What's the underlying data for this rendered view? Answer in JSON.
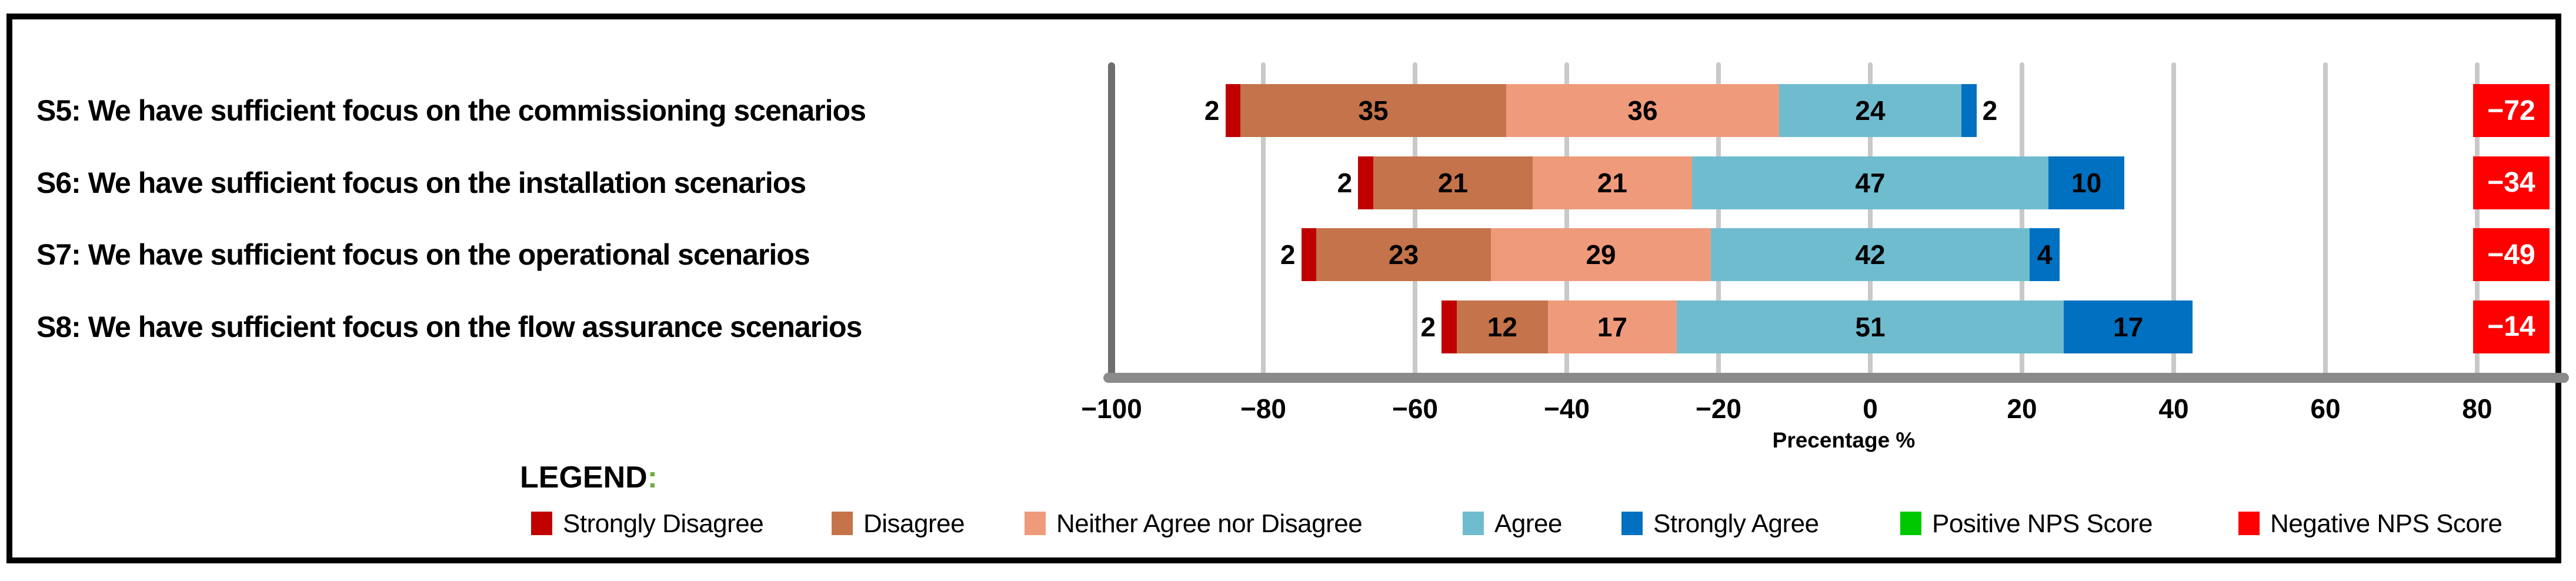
{
  "chart_data": {
    "type": "bar",
    "subtype": "diverging-stacked-likert",
    "orientation": "horizontal",
    "categories": [
      "S5: We have sufficient focus on the commissioning scenarios",
      "S6: We have sufficient focus on the installation scenarios",
      "S7: We have sufficient focus on the operational scenarios",
      "S8: We have sufficient focus on the flow assurance scenarios"
    ],
    "series": [
      {
        "name": "Strongly Disagree",
        "color": "#c00000",
        "values": [
          2,
          2,
          2,
          2
        ]
      },
      {
        "name": "Disagree",
        "color": "#c5734a",
        "values": [
          35,
          21,
          23,
          12
        ]
      },
      {
        "name": "Neither Agree nor Disagree",
        "color": "#f09a7c",
        "values": [
          36,
          21,
          29,
          17
        ]
      },
      {
        "name": "Agree",
        "color": "#6fbccf",
        "values": [
          24,
          47,
          42,
          51
        ]
      },
      {
        "name": "Strongly Agree",
        "color": "#0070c0",
        "values": [
          2,
          10,
          4,
          17
        ]
      }
    ],
    "nps_scores": {
      "name": "Negative NPS Score",
      "color": "#ff0000",
      "values": [
        -72,
        -34,
        -49,
        -14
      ],
      "display": [
        "−72",
        "−34",
        "−49",
        "−14"
      ]
    },
    "xlabel": "Precentage %",
    "x_ticks": [
      -100,
      -80,
      -60,
      -40,
      -20,
      0,
      20,
      40,
      60,
      80
    ],
    "x_tick_labels": [
      "−100",
      "−80",
      "−60",
      "−40",
      "−20",
      "0",
      "20",
      "40",
      "60",
      "80"
    ],
    "xlim": [
      -100,
      91
    ],
    "grid": true,
    "alignment": "agree-segment-centered-on-zero",
    "legend_position": "bottom"
  },
  "legend": {
    "title": "LEGEND",
    "colon": ":",
    "items": [
      {
        "label": "Strongly Disagree",
        "color": "#c00000"
      },
      {
        "label": "Disagree",
        "color": "#c5734a"
      },
      {
        "label": "Neither Agree nor Disagree",
        "color": "#f09a7c"
      },
      {
        "label": "Agree",
        "color": "#6fbccf"
      },
      {
        "label": "Strongly Agree",
        "color": "#0070c0"
      },
      {
        "label": "Positive NPS Score",
        "color": "#00c800"
      },
      {
        "label": "Negative NPS Score",
        "color": "#ff0000"
      }
    ]
  }
}
